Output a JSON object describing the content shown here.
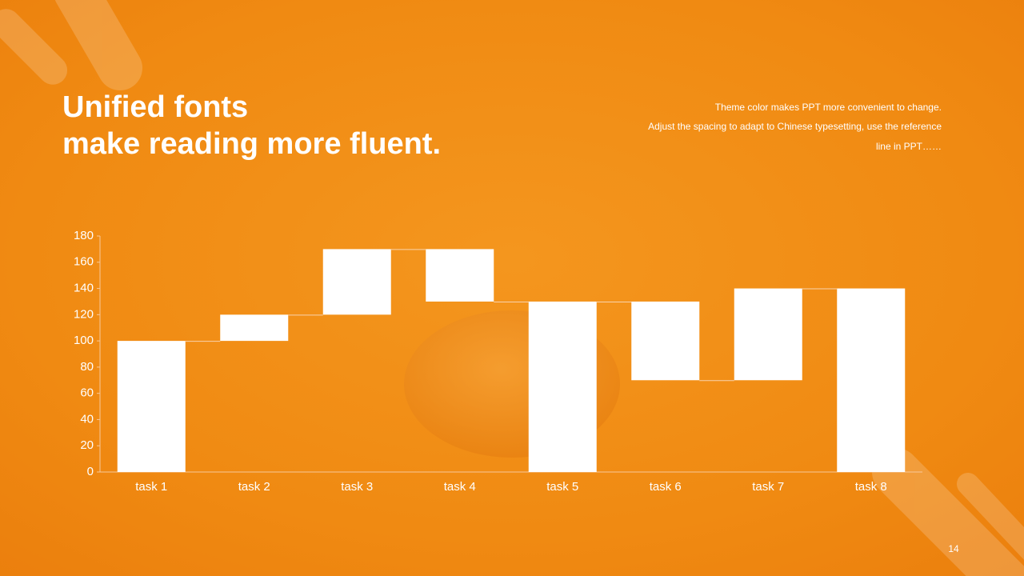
{
  "header": {
    "title_lines": [
      "Unified fonts",
      "make reading more fluent."
    ],
    "description_lines": [
      "Theme color makes PPT more convenient to change.",
      "Adjust the spacing to adapt to Chinese typesetting, use the reference",
      "line in PPT……"
    ]
  },
  "page_number": "14",
  "chart_data": {
    "type": "waterfall",
    "categories": [
      "task 1",
      "task 2",
      "task 3",
      "task 4",
      "task 5",
      "task 6",
      "task 7",
      "task 8"
    ],
    "values": [
      100,
      20,
      50,
      -40,
      130,
      -60,
      70,
      140
    ],
    "measure": [
      "absolute",
      "relative",
      "relative",
      "relative",
      "absolute",
      "relative",
      "relative",
      "absolute"
    ],
    "color": "#ffffff",
    "ylim": [
      0,
      180
    ],
    "yticks": [
      0,
      20,
      40,
      60,
      80,
      100,
      120,
      140,
      160,
      180
    ],
    "grid": false
  }
}
